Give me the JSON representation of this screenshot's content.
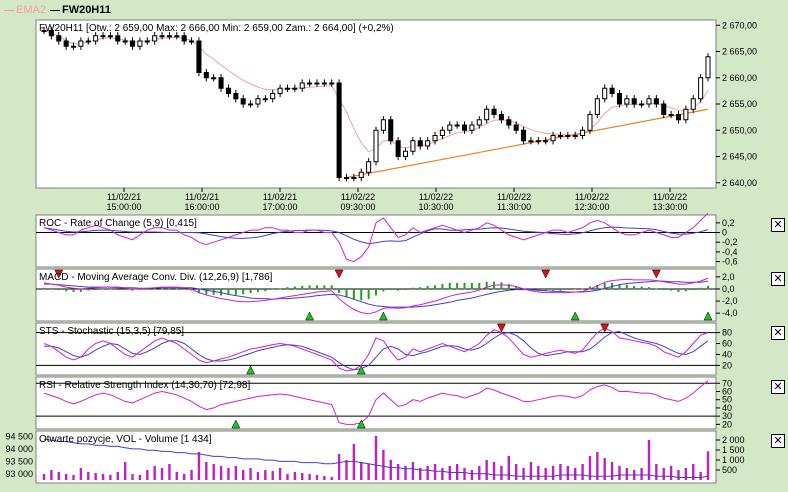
{
  "legend": [
    {
      "label": "EMA2",
      "color": "#f0a0a0"
    },
    {
      "label": "FW20H11",
      "color": "#000000"
    }
  ],
  "main_panel": {
    "title": "FW20H11 [Otw.: 2 659,00   Max: 2 666,00   Min: 2 659,00   Zam.: 2 664,00] (+0,2%)",
    "y_ticks": [
      "2 640,00",
      "2 645,00",
      "2 650,00",
      "2 655,00",
      "2 660,00",
      "2 665,00",
      "2 670,00"
    ],
    "x_ticks": [
      {
        "date": "11/02/21",
        "time": "15:00:00"
      },
      {
        "date": "11/02/21",
        "time": "16:00:00"
      },
      {
        "date": "11/02/21",
        "time": "17:00:00"
      },
      {
        "date": "11/02/22",
        "time": "09:30:00"
      },
      {
        "date": "11/02/22",
        "time": "10:30:00"
      },
      {
        "date": "11/02/22",
        "time": "11:30:00"
      },
      {
        "date": "11/02/22",
        "time": "12:30:00"
      },
      {
        "date": "11/02/22",
        "time": "13:30:00"
      }
    ]
  },
  "panels": [
    {
      "title": "ROC - Rate of Change (5,9) [0,415]",
      "y_ticks": [
        "0,2",
        "0",
        "-0,2",
        "-0,4",
        "-0,6"
      ]
    },
    {
      "title": "MACD - Moving Average Conv. Div. (12,26,9) [1,786]",
      "y_ticks": [
        "2,0",
        "0,0",
        "-2,0",
        "-4,0"
      ]
    },
    {
      "title": "STS - Stochastic (15,3,5) [79,85]",
      "y_ticks": [
        "80",
        "60",
        "40",
        "20"
      ]
    },
    {
      "title": "RSI - Relative Strength Index (14,30,70) [72,98]",
      "y_ticks": [
        "70",
        "60",
        "50",
        "40",
        "30",
        "20"
      ]
    },
    {
      "title": "Otwarte pozycje, VOL - Volume [1 434]",
      "y_ticks": [
        "2 000",
        "1 500",
        "1 000",
        "500"
      ],
      "y_ticks_left": [
        "94 500",
        "94 000",
        "93 500",
        "93 000"
      ]
    }
  ],
  "colors": {
    "background": "#d4e8c8",
    "panel_bg": "#ffffff",
    "candles": "#000000",
    "ema": "#f0a0a0",
    "trendline": "#f08020",
    "indicator_main": "#d020d0",
    "indicator_signal": "#4040d0",
    "macd_hist": "#20a020",
    "signal_up": "#20c020",
    "signal_down": "#e01010",
    "volume_bars": "#c020c0"
  },
  "chart_data": {
    "type": "candlestick",
    "ylim": [
      2639,
      2671
    ],
    "close": [
      2669,
      2668,
      2667,
      2666,
      2666,
      2667,
      2667,
      2668,
      2668,
      2668,
      2667,
      2667,
      2666,
      2667,
      2667,
      2668,
      2668,
      2668,
      2668,
      2667,
      2667,
      2661,
      2660,
      2660,
      2658,
      2657,
      2656,
      2655,
      2655,
      2656,
      2656,
      2657,
      2658,
      2658,
      2658,
      2659,
      2659,
      2659,
      2659,
      2659,
      2641,
      2641,
      2641,
      2642,
      2644,
      2650,
      2652,
      2648,
      2645,
      2646,
      2648,
      2647,
      2648,
      2649,
      2650,
      2651,
      2651,
      2650,
      2651,
      2652,
      2654,
      2653,
      2652,
      2651,
      2650,
      2648,
      2648,
      2648,
      2648,
      2649,
      2649,
      2649,
      2649,
      2650,
      2653,
      2656,
      2658,
      2657,
      2655,
      2656,
      2655,
      2655,
      2656,
      2655,
      2653,
      2653,
      2652,
      2654,
      2656,
      2660,
      2664
    ],
    "ema": [
      2669,
      2668.5,
      2668,
      2667,
      2666.5,
      2666.5,
      2666.8,
      2667.2,
      2667.5,
      2667.6,
      2667.4,
      2667.2,
      2666.8,
      2666.9,
      2667,
      2667.3,
      2667.5,
      2667.6,
      2667.7,
      2667.4,
      2667.2,
      2666,
      2664.5,
      2663.5,
      2662.4,
      2661.4,
      2660.4,
      2659.5,
      2658.8,
      2658.2,
      2657.8,
      2657.7,
      2657.8,
      2657.9,
      2658,
      2658.1,
      2658.2,
      2658.3,
      2658.4,
      2658.5,
      2656,
      2653.5,
      2650.3,
      2647.6,
      2645.9,
      2646.5,
      2648,
      2648,
      2647,
      2646.6,
      2647,
      2647,
      2647.3,
      2647.8,
      2648.4,
      2649,
      2649.5,
      2649.7,
      2650,
      2650.5,
      2651.3,
      2651.9,
      2652,
      2651.8,
      2651.4,
      2650.7,
      2650.1,
      2649.7,
      2649.4,
      2649.3,
      2649.2,
      2649.1,
      2649.1,
      2649.3,
      2650.1,
      2651.5,
      2653.2,
      2654.4,
      2654.6,
      2654.9,
      2654.9,
      2654.9,
      2655.1,
      2655.1,
      2654.7,
      2654.3,
      2653.8,
      2653.8,
      2654.2,
      2655.4,
      2657.6
    ],
    "trendline": {
      "start": [
        41,
        2641
      ],
      "end": [
        90,
        2654
      ]
    },
    "roc": [
      0.1,
      0.05,
      0,
      -0.05,
      -0.05,
      0.05,
      0.1,
      0.15,
      0.1,
      0.05,
      -0.05,
      -0.1,
      -0.15,
      -0.05,
      0.05,
      0.1,
      0.1,
      0.05,
      0.05,
      -0.05,
      -0.1,
      -0.2,
      -0.25,
      -0.2,
      -0.15,
      -0.1,
      -0.05,
      0,
      0.05,
      0.05,
      0.1,
      0.1,
      0.05,
      0.05,
      0,
      0,
      0.05,
      0.05,
      0,
      0,
      -0.2,
      -0.55,
      -0.6,
      -0.5,
      -0.3,
      0.2,
      0.3,
      0.1,
      -0.1,
      -0.05,
      0.1,
      0,
      0.05,
      0.1,
      0.15,
      0.1,
      0.05,
      0,
      0.05,
      0.1,
      0.2,
      0.15,
      0.05,
      -0.05,
      -0.1,
      -0.15,
      -0.1,
      -0.05,
      0,
      0.05,
      0.05,
      0,
      0.05,
      0.1,
      0.2,
      0.25,
      0.2,
      0.1,
      0,
      -0.05,
      -0.05,
      0,
      0.05,
      0,
      -0.05,
      -0.1,
      -0.1,
      0,
      0.1,
      0.25,
      0.4
    ],
    "macd": [
      1,
      0.8,
      0.6,
      0.3,
      0.1,
      0,
      0.1,
      0.2,
      0.3,
      0.3,
      0.2,
      0.1,
      0,
      0,
      0.1,
      0.2,
      0.3,
      0.3,
      0.3,
      0.2,
      0,
      -0.6,
      -1,
      -1.3,
      -1.6,
      -1.8,
      -2,
      -2.1,
      -2.1,
      -2,
      -1.9,
      -1.7,
      -1.5,
      -1.3,
      -1.1,
      -0.9,
      -0.7,
      -0.5,
      -0.4,
      -0.3,
      -1.6,
      -2.6,
      -3.4,
      -3.9,
      -4.1,
      -3.8,
      -3.2,
      -3.1,
      -3.2,
      -3.1,
      -2.8,
      -2.6,
      -2.3,
      -2,
      -1.6,
      -1.2,
      -0.9,
      -0.7,
      -0.5,
      -0.2,
      0.3,
      0.6,
      0.7,
      0.6,
      0.4,
      0,
      -0.3,
      -0.5,
      -0.6,
      -0.6,
      -0.6,
      -0.6,
      -0.5,
      -0.4,
      0,
      0.5,
      1.1,
      1.4,
      1.5,
      1.6,
      1.5,
      1.5,
      1.5,
      1.4,
      1.2,
      1,
      0.8,
      0.8,
      1,
      1.3,
      1.8
    ],
    "macd_signal": [
      0.8,
      0.8,
      0.7,
      0.6,
      0.5,
      0.4,
      0.3,
      0.3,
      0.3,
      0.3,
      0.3,
      0.2,
      0.2,
      0.1,
      0.1,
      0.1,
      0.2,
      0.2,
      0.2,
      0.2,
      0.2,
      0,
      -0.2,
      -0.4,
      -0.6,
      -0.9,
      -1.1,
      -1.3,
      -1.5,
      -1.6,
      -1.6,
      -1.7,
      -1.6,
      -1.6,
      -1.5,
      -1.4,
      -1.3,
      -1.1,
      -1,
      -0.9,
      -1,
      -1.3,
      -1.7,
      -2.1,
      -2.5,
      -2.8,
      -2.9,
      -3,
      -3,
      -3,
      -3,
      -2.9,
      -2.8,
      -2.6,
      -2.4,
      -2.2,
      -1.9,
      -1.7,
      -1.5,
      -1.2,
      -0.9,
      -0.6,
      -0.4,
      -0.2,
      -0.1,
      -0.1,
      -0.1,
      -0.2,
      -0.3,
      -0.4,
      -0.4,
      -0.5,
      -0.5,
      -0.5,
      -0.4,
      -0.2,
      0.1,
      0.4,
      0.7,
      0.9,
      1,
      1.1,
      1.2,
      1.3,
      1.3,
      1.2,
      1.2,
      1.1,
      1.1,
      1.1,
      1.3
    ],
    "stochastic_k": [
      60,
      55,
      45,
      35,
      30,
      35,
      50,
      60,
      65,
      60,
      50,
      40,
      35,
      45,
      55,
      65,
      70,
      65,
      60,
      50,
      40,
      30,
      25,
      28,
      32,
      35,
      40,
      45,
      50,
      52,
      55,
      58,
      60,
      58,
      55,
      50,
      45,
      40,
      35,
      30,
      15,
      10,
      12,
      20,
      40,
      70,
      65,
      45,
      30,
      35,
      50,
      45,
      50,
      55,
      60,
      55,
      50,
      45,
      52,
      60,
      75,
      85,
      80,
      70,
      55,
      40,
      35,
      38,
      42,
      45,
      48,
      45,
      42,
      48,
      65,
      80,
      88,
      82,
      70,
      68,
      65,
      62,
      60,
      55,
      45,
      40,
      35,
      45,
      60,
      75,
      80
    ],
    "stochastic_d": [
      55,
      55,
      52,
      45,
      38,
      35,
      40,
      48,
      55,
      60,
      58,
      50,
      42,
      40,
      45,
      52,
      60,
      65,
      65,
      60,
      50,
      40,
      32,
      28,
      28,
      30,
      33,
      38,
      42,
      47,
      50,
      53,
      56,
      58,
      57,
      55,
      50,
      45,
      40,
      35,
      25,
      17,
      12,
      14,
      20,
      35,
      50,
      55,
      50,
      40,
      38,
      42,
      45,
      50,
      55,
      56,
      55,
      50,
      48,
      52,
      60,
      70,
      78,
      80,
      75,
      65,
      52,
      42,
      38,
      40,
      42,
      45,
      45,
      45,
      50,
      60,
      72,
      80,
      82,
      76,
      70,
      66,
      63,
      60,
      55,
      48,
      42,
      40,
      45,
      55,
      65
    ],
    "rsi": [
      58,
      55,
      52,
      48,
      45,
      48,
      52,
      56,
      58,
      56,
      52,
      48,
      46,
      50,
      54,
      58,
      60,
      58,
      56,
      52,
      48,
      42,
      38,
      40,
      44,
      46,
      48,
      50,
      52,
      54,
      55,
      56,
      57,
      56,
      54,
      52,
      50,
      48,
      46,
      44,
      22,
      20,
      20,
      22,
      30,
      50,
      58,
      50,
      42,
      44,
      50,
      48,
      52,
      55,
      58,
      56,
      55,
      52,
      55,
      58,
      64,
      62,
      58,
      55,
      52,
      48,
      48,
      50,
      52,
      54,
      55,
      54,
      52,
      55,
      62,
      66,
      68,
      65,
      60,
      60,
      59,
      58,
      58,
      56,
      52,
      50,
      48,
      52,
      58,
      66,
      73
    ],
    "volume": [
      300,
      500,
      400,
      300,
      250,
      600,
      400,
      350,
      300,
      250,
      400,
      900,
      300,
      250,
      500,
      700,
      600,
      800,
      400,
      300,
      500,
      1400,
      900,
      800,
      700,
      600,
      700,
      500,
      600,
      400,
      500,
      450,
      600,
      300,
      400,
      350,
      300,
      250,
      200,
      150,
      1300,
      1000,
      1800,
      900,
      800,
      2200,
      1500,
      1000,
      800,
      700,
      900,
      600,
      700,
      800,
      600,
      700,
      800,
      600,
      500,
      700,
      1000,
      900,
      700,
      1200,
      800,
      600,
      900,
      700,
      600,
      700,
      800,
      700,
      600,
      800,
      1200,
      1400,
      1100,
      900,
      700,
      600,
      500,
      600,
      2000,
      800,
      600,
      700,
      500,
      600,
      800,
      400,
      1434
    ],
    "open_interest": [
      94400,
      94350,
      94300,
      94300,
      94250,
      94200,
      94200,
      94150,
      94150,
      94100,
      94100,
      94050,
      94000,
      94000,
      93950,
      93950,
      93900,
      93900,
      93850,
      93850,
      93800,
      93800,
      93750,
      93700,
      93700,
      93650,
      93650,
      93600,
      93600,
      93600,
      93550,
      93550,
      93500,
      93500,
      93500,
      93450,
      93450,
      93450,
      93400,
      93400,
      93450,
      93500,
      93500,
      93450,
      93400,
      93350,
      93300,
      93250,
      93250,
      93200,
      93200,
      93150,
      93150,
      93100,
      93100,
      93050,
      93050,
      93050,
      93000,
      93000,
      93000,
      92950,
      92950,
      92950,
      92900,
      92900,
      92900,
      92900,
      92900,
      92900,
      92950,
      92950,
      92950,
      92950,
      92900,
      92900,
      92900,
      92900,
      92950,
      92950,
      92950,
      92950,
      92950,
      92900,
      92900,
      92900,
      92850,
      92850,
      92850,
      92850,
      92900
    ]
  }
}
